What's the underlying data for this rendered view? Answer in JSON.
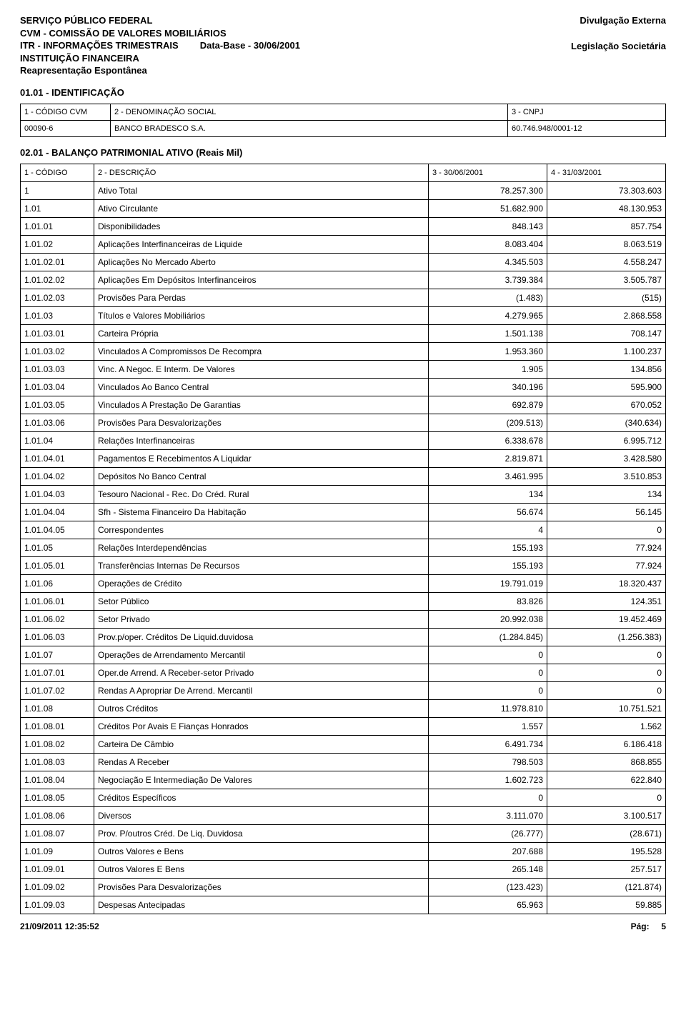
{
  "header": {
    "line1": "SERVIÇO PÚBLICO FEDERAL",
    "line2": "CVM - COMISSÃO DE VALORES MOBILIÁRIOS",
    "line3_left": "ITR - INFORMAÇÕES TRIMESTRAIS",
    "line3_right": "Data-Base - 30/06/2001",
    "line4": "INSTITUIÇÃO FINANCEIRA",
    "line5": "Reapresentação Espontânea",
    "right1": "Divulgação Externa",
    "right2": "Legislação Societária"
  },
  "ident": {
    "title": "01.01 - IDENTIFICAÇÃO",
    "col1_label": "1 - CÓDIGO CVM",
    "col2_label": "2 - DENOMINAÇÃO SOCIAL",
    "col3_label": "3 - CNPJ",
    "col1_value": "00090-6",
    "col2_value": "BANCO BRADESCO S.A.",
    "col3_value": "60.746.948/0001-12"
  },
  "balance": {
    "title": "02.01 - BALANÇO PATRIMONIAL ATIVO (Reais Mil)",
    "hdr1": "1 - CÓDIGO",
    "hdr2": "2 - DESCRIÇÃO",
    "hdr3": "3 - 30/06/2001",
    "hdr4": "4 - 31/03/2001",
    "rows": [
      {
        "c": "1",
        "d": "Ativo Total",
        "v1": "78.257.300",
        "v2": "73.303.603"
      },
      {
        "c": "1.01",
        "d": "Ativo Circulante",
        "v1": "51.682.900",
        "v2": "48.130.953"
      },
      {
        "c": "1.01.01",
        "d": "Disponibilidades",
        "v1": "848.143",
        "v2": "857.754"
      },
      {
        "c": "1.01.02",
        "d": "Aplicações Interfinanceiras de Liquide",
        "v1": "8.083.404",
        "v2": "8.063.519"
      },
      {
        "c": "1.01.02.01",
        "d": "Aplicações No Mercado Aberto",
        "v1": "4.345.503",
        "v2": "4.558.247"
      },
      {
        "c": "1.01.02.02",
        "d": "Aplicações Em Depósitos Interfinanceiros",
        "v1": "3.739.384",
        "v2": "3.505.787"
      },
      {
        "c": "1.01.02.03",
        "d": "Provisões Para Perdas",
        "v1": "(1.483)",
        "v2": "(515)"
      },
      {
        "c": "1.01.03",
        "d": "Títulos e Valores Mobiliários",
        "v1": "4.279.965",
        "v2": "2.868.558"
      },
      {
        "c": "1.01.03.01",
        "d": "Carteira Própria",
        "v1": "1.501.138",
        "v2": "708.147"
      },
      {
        "c": "1.01.03.02",
        "d": "Vinculados A Compromissos De Recompra",
        "v1": "1.953.360",
        "v2": "1.100.237"
      },
      {
        "c": "1.01.03.03",
        "d": "Vinc. A Negoc. E Interm. De Valores",
        "v1": "1.905",
        "v2": "134.856"
      },
      {
        "c": "1.01.03.04",
        "d": "Vinculados Ao Banco Central",
        "v1": "340.196",
        "v2": "595.900"
      },
      {
        "c": "1.01.03.05",
        "d": "Vinculados A Prestação De Garantias",
        "v1": "692.879",
        "v2": "670.052"
      },
      {
        "c": "1.01.03.06",
        "d": "Provisões Para Desvalorizações",
        "v1": "(209.513)",
        "v2": "(340.634)"
      },
      {
        "c": "1.01.04",
        "d": "Relações Interfinanceiras",
        "v1": "6.338.678",
        "v2": "6.995.712"
      },
      {
        "c": "1.01.04.01",
        "d": "Pagamentos E Recebimentos A Liquidar",
        "v1": "2.819.871",
        "v2": "3.428.580"
      },
      {
        "c": "1.01.04.02",
        "d": "Depósitos No Banco Central",
        "v1": "3.461.995",
        "v2": "3.510.853"
      },
      {
        "c": "1.01.04.03",
        "d": "Tesouro Nacional - Rec. Do Créd. Rural",
        "v1": "134",
        "v2": "134"
      },
      {
        "c": "1.01.04.04",
        "d": "Sfh - Sistema Financeiro Da Habitação",
        "v1": "56.674",
        "v2": "56.145"
      },
      {
        "c": "1.01.04.05",
        "d": "Correspondentes",
        "v1": "4",
        "v2": "0"
      },
      {
        "c": "1.01.05",
        "d": "Relações Interdependências",
        "v1": "155.193",
        "v2": "77.924"
      },
      {
        "c": "1.01.05.01",
        "d": "Transferências Internas De Recursos",
        "v1": "155.193",
        "v2": "77.924"
      },
      {
        "c": "1.01.06",
        "d": "Operações de Crédito",
        "v1": "19.791.019",
        "v2": "18.320.437"
      },
      {
        "c": "1.01.06.01",
        "d": "Setor Público",
        "v1": "83.826",
        "v2": "124.351"
      },
      {
        "c": "1.01.06.02",
        "d": "Setor Privado",
        "v1": "20.992.038",
        "v2": "19.452.469"
      },
      {
        "c": "1.01.06.03",
        "d": "Prov.p/oper. Créditos De Liquid.duvidosa",
        "v1": "(1.284.845)",
        "v2": "(1.256.383)"
      },
      {
        "c": "1.01.07",
        "d": "Operações de Arrendamento Mercantil",
        "v1": "0",
        "v2": "0"
      },
      {
        "c": "1.01.07.01",
        "d": "Oper.de Arrend. A Receber-setor Privado",
        "v1": "0",
        "v2": "0"
      },
      {
        "c": "1.01.07.02",
        "d": "Rendas A Apropriar De Arrend. Mercantil",
        "v1": "0",
        "v2": "0"
      },
      {
        "c": "1.01.08",
        "d": "Outros Créditos",
        "v1": "11.978.810",
        "v2": "10.751.521"
      },
      {
        "c": "1.01.08.01",
        "d": "Créditos Por Avais E Fianças Honrados",
        "v1": "1.557",
        "v2": "1.562"
      },
      {
        "c": "1.01.08.02",
        "d": "Carteira De Câmbio",
        "v1": "6.491.734",
        "v2": "6.186.418"
      },
      {
        "c": "1.01.08.03",
        "d": "Rendas A Receber",
        "v1": "798.503",
        "v2": "868.855"
      },
      {
        "c": "1.01.08.04",
        "d": "Negociação E Intermediação De Valores",
        "v1": "1.602.723",
        "v2": "622.840"
      },
      {
        "c": "1.01.08.05",
        "d": "Créditos Específicos",
        "v1": "0",
        "v2": "0"
      },
      {
        "c": "1.01.08.06",
        "d": "Diversos",
        "v1": "3.111.070",
        "v2": "3.100.517"
      },
      {
        "c": "1.01.08.07",
        "d": "Prov. P/outros Créd. De Liq. Duvidosa",
        "v1": "(26.777)",
        "v2": "(28.671)"
      },
      {
        "c": "1.01.09",
        "d": "Outros Valores e Bens",
        "v1": "207.688",
        "v2": "195.528"
      },
      {
        "c": "1.01.09.01",
        "d": "Outros Valores E Bens",
        "v1": "265.148",
        "v2": "257.517"
      },
      {
        "c": "1.01.09.02",
        "d": "Provisões Para Desvalorizações",
        "v1": "(123.423)",
        "v2": "(121.874)"
      },
      {
        "c": "1.01.09.03",
        "d": "Despesas Antecipadas",
        "v1": "65.963",
        "v2": "59.885"
      }
    ]
  },
  "footer": {
    "timestamp": "21/09/2011 12:35:52",
    "page_label": "Pág:",
    "page_number": "5"
  }
}
